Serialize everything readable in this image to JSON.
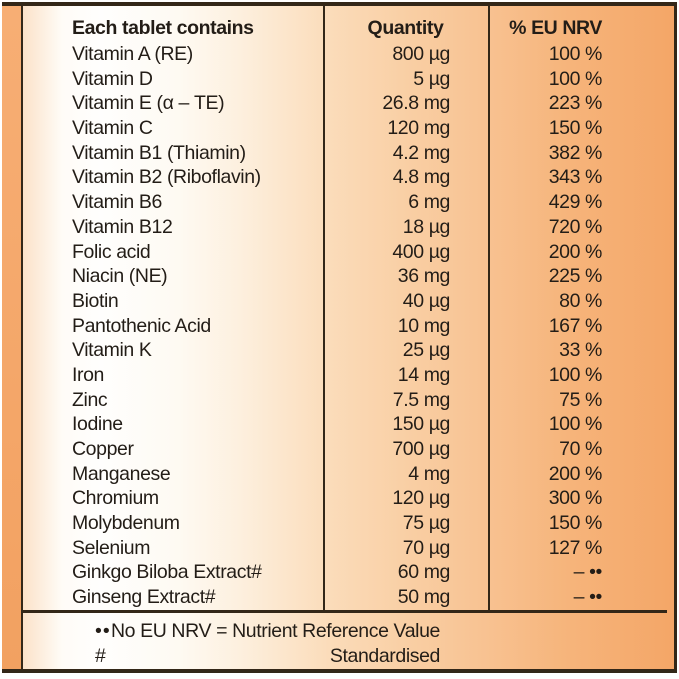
{
  "label": {
    "table": {
      "header": {
        "contains": "Each tablet contains",
        "quantity": "Quantity",
        "nrv": "% EU NRV"
      },
      "rows": [
        {
          "name": "Vitamin A (RE)",
          "qty": "800 µg",
          "nrv": "100 %"
        },
        {
          "name": "Vitamin D",
          "qty": "5 µg",
          "nrv": "100 %"
        },
        {
          "name": "Vitamin E (α – TE)",
          "qty": "26.8 mg",
          "nrv": "223 %"
        },
        {
          "name": "Vitamin C",
          "qty": "120 mg",
          "nrv": "150 %"
        },
        {
          "name": "Vitamin B1 (Thiamin)",
          "qty": "4.2 mg",
          "nrv": "382 %"
        },
        {
          "name": "Vitamin B2 (Riboflavin)",
          "qty": "4.8 mg",
          "nrv": "343 %"
        },
        {
          "name": "Vitamin B6",
          "qty": "6 mg",
          "nrv": "429 %"
        },
        {
          "name": "Vitamin B12",
          "qty": "18 µg",
          "nrv": "720 %"
        },
        {
          "name": "Folic acid",
          "qty": "400 µg",
          "nrv": "200 %"
        },
        {
          "name": "Niacin (NE)",
          "qty": "36 mg",
          "nrv": "225 %"
        },
        {
          "name": "Biotin",
          "qty": "40 µg",
          "nrv": "80 %"
        },
        {
          "name": "Pantothenic Acid",
          "qty": "10 mg",
          "nrv": "167 %"
        },
        {
          "name": "Vitamin K",
          "qty": "25 µg",
          "nrv": "33 %"
        },
        {
          "name": "Iron",
          "qty": "14 mg",
          "nrv": "100 %"
        },
        {
          "name": "Zinc",
          "qty": "7.5 mg",
          "nrv": "75 %"
        },
        {
          "name": "Iodine",
          "qty": "150 µg",
          "nrv": "100 %"
        },
        {
          "name": "Copper",
          "qty": "700 µg",
          "nrv": "70 %"
        },
        {
          "name": "Manganese",
          "qty": "4 mg",
          "nrv": "200 %"
        },
        {
          "name": "Chromium",
          "qty": "120 µg",
          "nrv": "300 %"
        },
        {
          "name": "Molybdenum",
          "qty": "75 µg",
          "nrv": "150 %"
        },
        {
          "name": "Selenium",
          "qty": "70 µg",
          "nrv": "127 %"
        },
        {
          "name": "Ginkgo Biloba Extract#",
          "qty": "60 mg",
          "nrv": "– ••"
        },
        {
          "name": "Ginseng Extract#",
          "qty": "50 mg",
          "nrv": "– ••"
        }
      ]
    },
    "footnotes": [
      {
        "marker": "••",
        "text": "No EU NRV = Nutrient Reference Value"
      },
      {
        "marker": "#",
        "text": "Standardised"
      }
    ],
    "colors": {
      "background_orange": "#f4a667",
      "line_dark": "#332718",
      "text": "#231d17"
    }
  }
}
